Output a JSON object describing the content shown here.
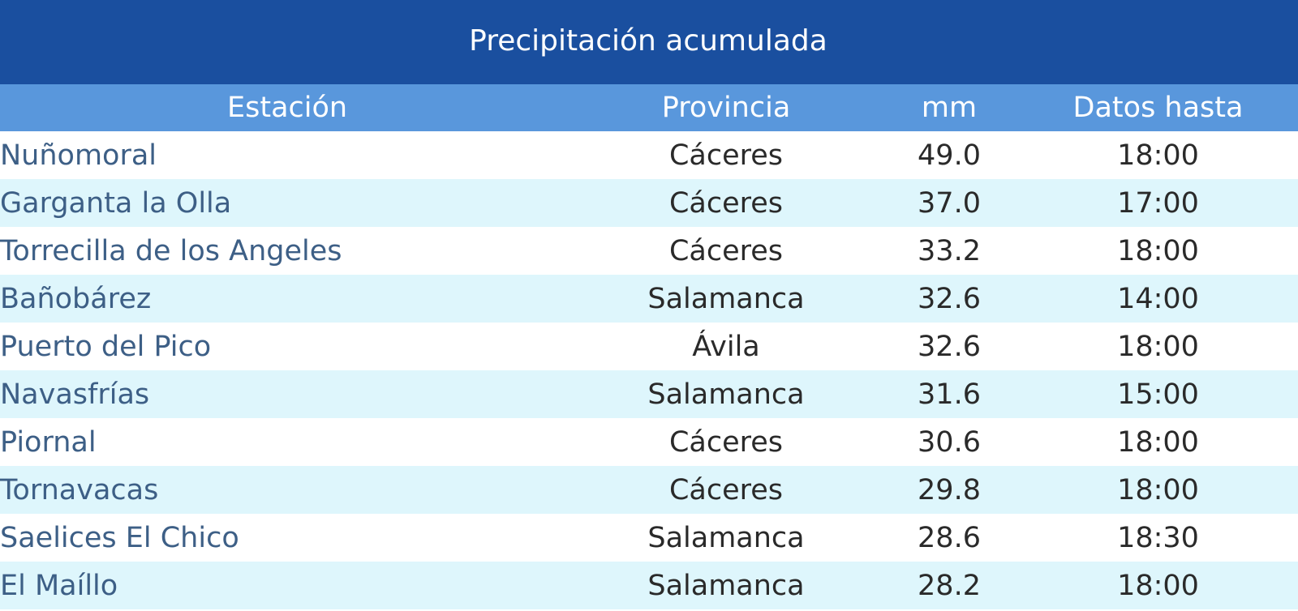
{
  "title": "Precipitación acumulada",
  "columns": [
    "Estación",
    "Provincia",
    "mm",
    "Datos hasta"
  ],
  "rows": [
    {
      "station": "Nuñomoral",
      "province": "Cáceres",
      "mm": "49.0",
      "until": "18:00"
    },
    {
      "station": "Garganta la Olla",
      "province": "Cáceres",
      "mm": "37.0",
      "until": "17:00"
    },
    {
      "station": "Torrecilla de los Angeles",
      "province": "Cáceres",
      "mm": "33.2",
      "until": "18:00"
    },
    {
      "station": "Bañobárez",
      "province": "Salamanca",
      "mm": "32.6",
      "until": "14:00"
    },
    {
      "station": "Puerto del Pico",
      "province": "Ávila",
      "mm": "32.6",
      "until": "18:00"
    },
    {
      "station": "Navasfrías",
      "province": "Salamanca",
      "mm": "31.6",
      "until": "15:00"
    },
    {
      "station": "Piornal",
      "province": "Cáceres",
      "mm": "30.6",
      "until": "18:00"
    },
    {
      "station": "Tornavacas",
      "province": "Cáceres",
      "mm": "29.8",
      "until": "18:00"
    },
    {
      "station": "Saelices El Chico",
      "province": "Salamanca",
      "mm": "28.6",
      "until": "18:30"
    },
    {
      "station": "El Maíllo",
      "province": "Salamanca",
      "mm": "28.2",
      "until": "18:00"
    }
  ],
  "colors": {
    "title_bg": "#1a4f9f",
    "header_bg": "#5997dc",
    "row_alt_bg": "#def6fc",
    "station_text": "#3d5f86"
  }
}
